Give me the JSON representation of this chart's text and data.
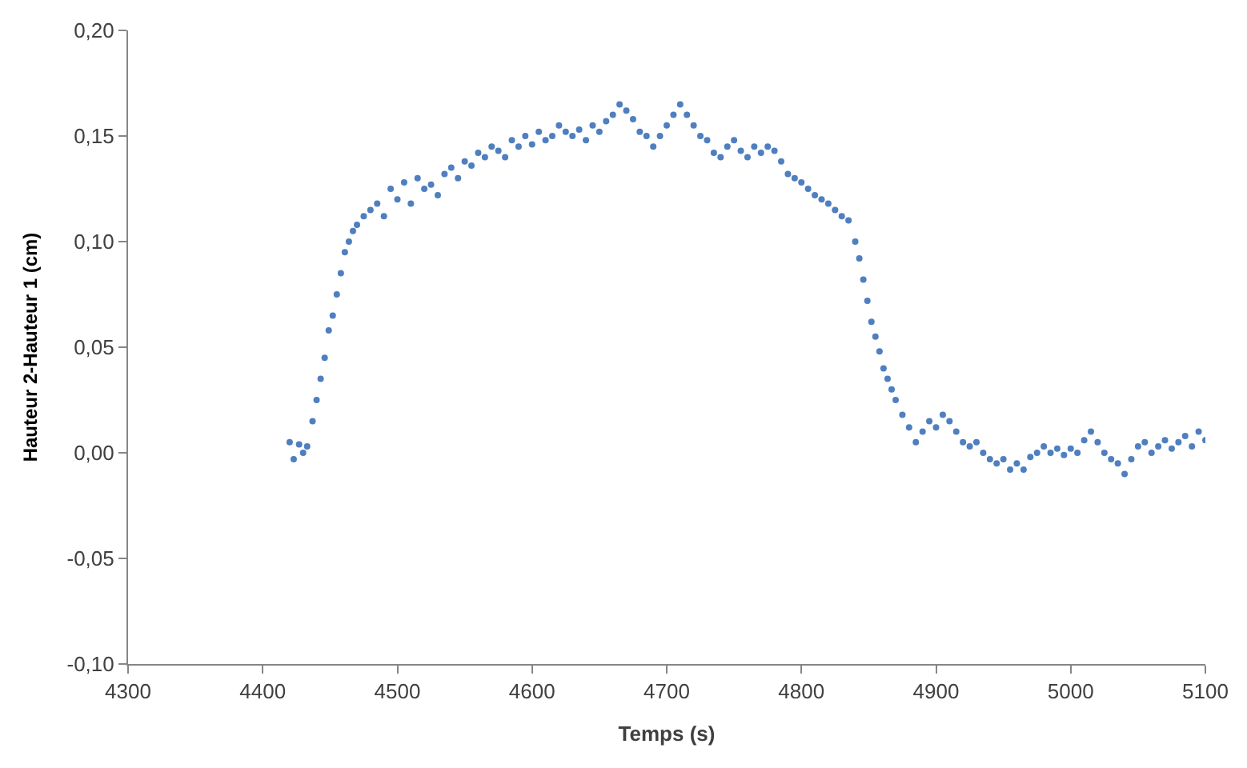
{
  "chart_data": {
    "type": "scatter",
    "xlabel": "Temps (s)",
    "ylabel": "Hauteur 2-Hauteur 1 (cm)",
    "marker": "circle",
    "xlim": [
      4300,
      5100
    ],
    "xticks": [
      4300,
      4400,
      4500,
      4600,
      4700,
      4800,
      4900,
      5000,
      5100
    ],
    "ylim": [
      -0.1,
      0.2
    ],
    "yticks": [
      {
        "value": -0.1,
        "label": "-0,10"
      },
      {
        "value": -0.05,
        "label": "-0,05"
      },
      {
        "value": 0,
        "label": "0,00"
      },
      {
        "value": 0.05,
        "label": "0,05"
      },
      {
        "value": 0.1,
        "label": "0,10"
      },
      {
        "value": 0.15,
        "label": "0,15"
      },
      {
        "value": 0.2,
        "label": "0,20"
      }
    ],
    "series": [
      {
        "color": "#4f7fbf",
        "x": [
          4420,
          4423,
          4427,
          4430,
          4433,
          4437,
          4440,
          4443,
          4446,
          4449,
          4452,
          4455,
          4458,
          4461,
          4464,
          4467,
          4470,
          4475,
          4480,
          4485,
          4490,
          4495,
          4500,
          4505,
          4510,
          4515,
          4520,
          4525,
          4530,
          4535,
          4540,
          4545,
          4550,
          4555,
          4560,
          4565,
          4570,
          4575,
          4580,
          4585,
          4590,
          4595,
          4600,
          4605,
          4610,
          4615,
          4620,
          4625,
          4630,
          4635,
          4640,
          4645,
          4650,
          4655,
          4660,
          4665,
          4670,
          4675,
          4680,
          4685,
          4690,
          4695,
          4700,
          4705,
          4710,
          4715,
          4720,
          4725,
          4730,
          4735,
          4740,
          4745,
          4750,
          4755,
          4760,
          4765,
          4770,
          4775,
          4780,
          4785,
          4790,
          4795,
          4800,
          4805,
          4810,
          4815,
          4820,
          4825,
          4830,
          4835,
          4840,
          4843,
          4846,
          4849,
          4852,
          4855,
          4858,
          4861,
          4864,
          4867,
          4870,
          4875,
          4880,
          4885,
          4890,
          4895,
          4900,
          4905,
          4910,
          4915,
          4920,
          4925,
          4930,
          4935,
          4940,
          4945,
          4950,
          4955,
          4960,
          4965,
          4970,
          4975,
          4980,
          4985,
          4990,
          4995,
          5000,
          5005,
          5010,
          5015,
          5020,
          5025,
          5030,
          5035,
          5040,
          5045,
          5050,
          5055,
          5060,
          5065,
          5070,
          5075,
          5080,
          5085,
          5090,
          5095,
          5100
        ],
        "values": [
          0.005,
          -0.003,
          0.004,
          0.0,
          0.003,
          0.015,
          0.025,
          0.035,
          0.045,
          0.058,
          0.065,
          0.075,
          0.085,
          0.095,
          0.1,
          0.105,
          0.108,
          0.112,
          0.115,
          0.118,
          0.112,
          0.125,
          0.12,
          0.128,
          0.118,
          0.13,
          0.125,
          0.127,
          0.122,
          0.132,
          0.135,
          0.13,
          0.138,
          0.136,
          0.142,
          0.14,
          0.145,
          0.143,
          0.14,
          0.148,
          0.145,
          0.15,
          0.146,
          0.152,
          0.148,
          0.15,
          0.155,
          0.152,
          0.15,
          0.153,
          0.148,
          0.155,
          0.152,
          0.157,
          0.16,
          0.165,
          0.162,
          0.158,
          0.152,
          0.15,
          0.145,
          0.15,
          0.155,
          0.16,
          0.165,
          0.16,
          0.155,
          0.15,
          0.148,
          0.142,
          0.14,
          0.145,
          0.148,
          0.143,
          0.14,
          0.145,
          0.142,
          0.145,
          0.143,
          0.138,
          0.132,
          0.13,
          0.128,
          0.125,
          0.122,
          0.12,
          0.118,
          0.115,
          0.112,
          0.11,
          0.1,
          0.092,
          0.082,
          0.072,
          0.062,
          0.055,
          0.048,
          0.04,
          0.035,
          0.03,
          0.025,
          0.018,
          0.012,
          0.005,
          0.01,
          0.015,
          0.012,
          0.018,
          0.015,
          0.01,
          0.005,
          0.003,
          0.005,
          0.0,
          -0.003,
          -0.005,
          -0.003,
          -0.008,
          -0.005,
          -0.008,
          -0.002,
          0.0,
          0.003,
          0.0,
          0.002,
          -0.001,
          0.002,
          0.0,
          0.006,
          0.01,
          0.005,
          0.0,
          -0.003,
          -0.005,
          -0.01,
          -0.003,
          0.003,
          0.005,
          0.0,
          0.003,
          0.006,
          0.002,
          0.005,
          0.008,
          0.003,
          0.01,
          0.006
        ]
      }
    ]
  }
}
